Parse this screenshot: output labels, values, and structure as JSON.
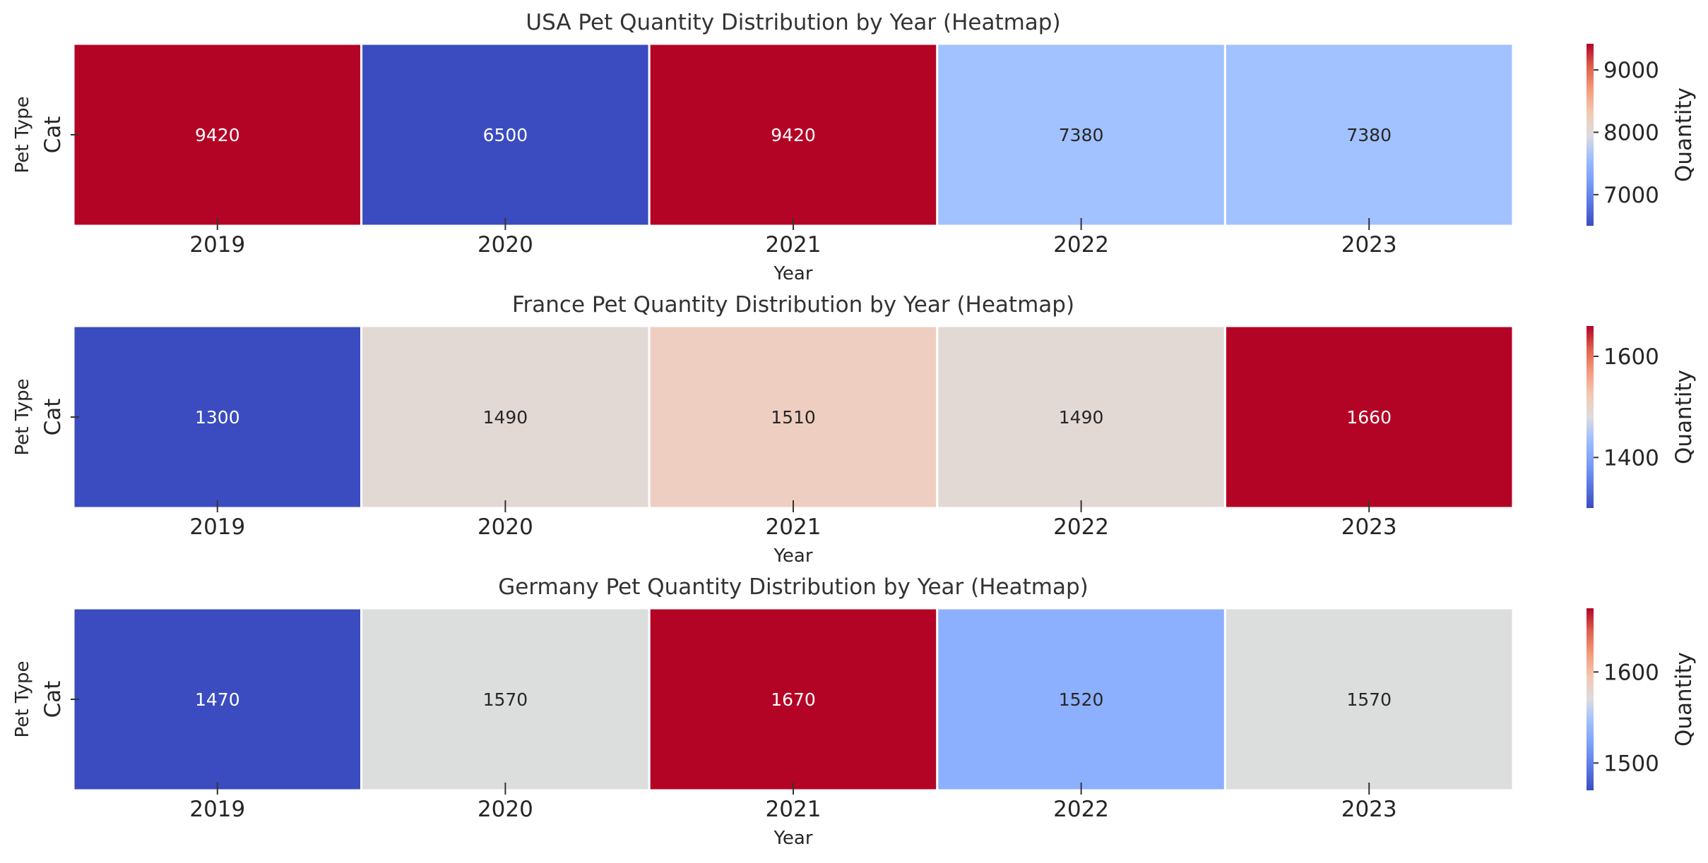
{
  "chart_data": [
    {
      "type": "heatmap",
      "title": "USA Pet Quantity Distribution by Year (Heatmap)",
      "xlabel": "Year",
      "ylabel": "Pet Type",
      "x": [
        "2019",
        "2020",
        "2021",
        "2022",
        "2023"
      ],
      "y": [
        "Cat"
      ],
      "values": [
        [
          9420,
          6500,
          9420,
          7380,
          7380
        ]
      ],
      "colormap": "coolwarm",
      "vmin": 6500,
      "vmax": 9420,
      "colorbar": {
        "label": "Quantity",
        "ticks": [
          7000,
          8000,
          9000
        ]
      },
      "colors": [
        "#b40426",
        "#3b4cc0",
        "#b40426",
        "#a2c1ff",
        "#a2c1ff"
      ]
    },
    {
      "type": "heatmap",
      "title": "France Pet Quantity Distribution by Year (Heatmap)",
      "xlabel": "Year",
      "ylabel": "Pet Type",
      "x": [
        "2019",
        "2020",
        "2021",
        "2022",
        "2023"
      ],
      "y": [
        "Cat"
      ],
      "values": [
        [
          1300,
          1490,
          1510,
          1490,
          1660
        ]
      ],
      "colormap": "coolwarm",
      "vmin": 1300,
      "vmax": 1660,
      "colorbar": {
        "label": "Quantity",
        "ticks": [
          1400,
          1600
        ]
      },
      "colors": [
        "#3b4cc0",
        "#e2d9d4",
        "#eecec0",
        "#e2d9d4",
        "#b40426"
      ]
    },
    {
      "type": "heatmap",
      "title": "Germany Pet Quantity Distribution by Year (Heatmap)",
      "xlabel": "Year",
      "ylabel": "Pet Type",
      "x": [
        "2019",
        "2020",
        "2021",
        "2022",
        "2023"
      ],
      "y": [
        "Cat"
      ],
      "values": [
        [
          1470,
          1570,
          1670,
          1520,
          1570
        ]
      ],
      "colormap": "coolwarm",
      "vmin": 1470,
      "vmax": 1670,
      "colorbar": {
        "label": "Quantity",
        "ticks": [
          1500,
          1600
        ]
      },
      "colors": [
        "#3b4cc0",
        "#dcdddd",
        "#b40426",
        "#8db0fe",
        "#dcdddd"
      ]
    }
  ]
}
